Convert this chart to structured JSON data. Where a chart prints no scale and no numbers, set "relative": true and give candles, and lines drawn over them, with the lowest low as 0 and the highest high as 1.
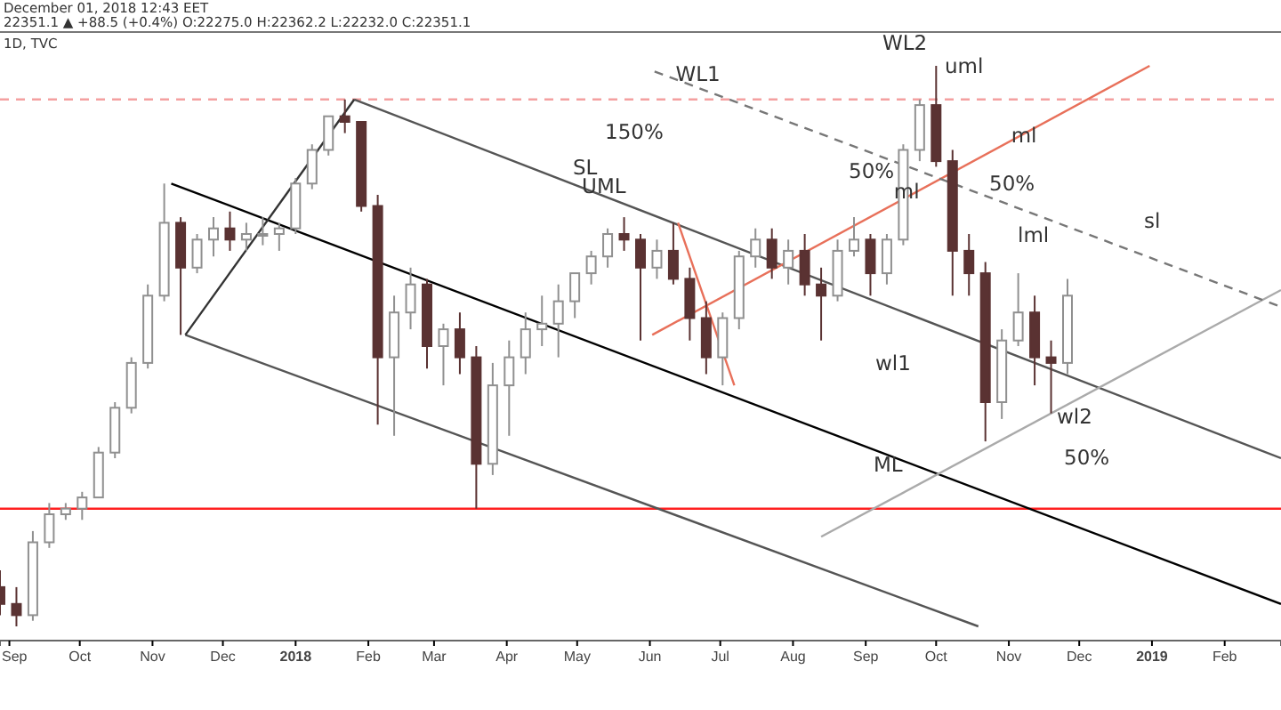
{
  "chart_data": {
    "type": "candlestick",
    "relative": true,
    "x": [
      "2017-08-28",
      "2017-09-04",
      "2017-09-11",
      "2017-09-18",
      "2017-09-25",
      "2017-10-02",
      "2017-10-09",
      "2017-10-16",
      "2017-10-23",
      "2017-10-30",
      "2017-11-06",
      "2017-11-13",
      "2017-11-20",
      "2017-11-27",
      "2017-12-04",
      "2017-12-11",
      "2017-12-18",
      "2017-12-25",
      "2018-01-01",
      "2018-01-08",
      "2018-01-15",
      "2018-01-22",
      "2018-01-29",
      "2018-02-05",
      "2018-02-12",
      "2018-02-19",
      "2018-02-26",
      "2018-03-05",
      "2018-03-12",
      "2018-03-19",
      "2018-03-26",
      "2018-04-02",
      "2018-04-09",
      "2018-04-16",
      "2018-04-23",
      "2018-04-30",
      "2018-05-07",
      "2018-05-14",
      "2018-05-21",
      "2018-05-28",
      "2018-06-04",
      "2018-06-11",
      "2018-06-18",
      "2018-06-25",
      "2018-07-02",
      "2018-07-09",
      "2018-07-16",
      "2018-07-23",
      "2018-07-30",
      "2018-08-06",
      "2018-08-13",
      "2018-08-20",
      "2018-08-27",
      "2018-09-03",
      "2018-09-10",
      "2018-09-17",
      "2018-09-24",
      "2018-10-01",
      "2018-10-08",
      "2018-10-15",
      "2018-10-22",
      "2018-10-29",
      "2018-11-05",
      "2018-11-12",
      "2018-11-19",
      "2018-11-26"
    ],
    "ohlc": [
      [
        0.07,
        0.1,
        0.02,
        0.04
      ],
      [
        0.04,
        0.07,
        0,
        0.02
      ],
      [
        0.02,
        0.17,
        0.01,
        0.15
      ],
      [
        0.15,
        0.22,
        0.14,
        0.2
      ],
      [
        0.2,
        0.22,
        0.19,
        0.21
      ],
      [
        0.21,
        0.24,
        0.19,
        0.23
      ],
      [
        0.23,
        0.32,
        0.23,
        0.31
      ],
      [
        0.31,
        0.4,
        0.3,
        0.39
      ],
      [
        0.39,
        0.48,
        0.38,
        0.47
      ],
      [
        0.47,
        0.61,
        0.46,
        0.59
      ],
      [
        0.59,
        0.79,
        0.58,
        0.72
      ],
      [
        0.72,
        0.73,
        0.52,
        0.64
      ],
      [
        0.64,
        0.7,
        0.63,
        0.69
      ],
      [
        0.69,
        0.73,
        0.66,
        0.71
      ],
      [
        0.71,
        0.74,
        0.67,
        0.69
      ],
      [
        0.69,
        0.72,
        0.67,
        0.7
      ],
      [
        0.7,
        0.73,
        0.68,
        0.7
      ],
      [
        0.7,
        0.72,
        0.67,
        0.71
      ],
      [
        0.71,
        0.8,
        0.7,
        0.79
      ],
      [
        0.79,
        0.86,
        0.78,
        0.85
      ],
      [
        0.85,
        0.91,
        0.84,
        0.91
      ],
      [
        0.91,
        0.94,
        0.88,
        0.9
      ],
      [
        0.9,
        0.9,
        0.74,
        0.75
      ],
      [
        0.75,
        0.77,
        0.36,
        0.48
      ],
      [
        0.48,
        0.59,
        0.34,
        0.56
      ],
      [
        0.56,
        0.64,
        0.53,
        0.61
      ],
      [
        0.61,
        0.62,
        0.46,
        0.5
      ],
      [
        0.5,
        0.54,
        0.43,
        0.53
      ],
      [
        0.53,
        0.56,
        0.45,
        0.48
      ],
      [
        0.48,
        0.5,
        0.21,
        0.29
      ],
      [
        0.29,
        0.47,
        0.27,
        0.43
      ],
      [
        0.43,
        0.51,
        0.34,
        0.48
      ],
      [
        0.48,
        0.56,
        0.45,
        0.53
      ],
      [
        0.53,
        0.59,
        0.5,
        0.54
      ],
      [
        0.54,
        0.61,
        0.48,
        0.58
      ],
      [
        0.58,
        0.63,
        0.55,
        0.63
      ],
      [
        0.63,
        0.67,
        0.61,
        0.66
      ],
      [
        0.66,
        0.71,
        0.64,
        0.7
      ],
      [
        0.7,
        0.73,
        0.67,
        0.69
      ],
      [
        0.69,
        0.7,
        0.51,
        0.64
      ],
      [
        0.64,
        0.69,
        0.62,
        0.67
      ],
      [
        0.67,
        0.72,
        0.61,
        0.62
      ],
      [
        0.62,
        0.64,
        0.51,
        0.55
      ],
      [
        0.55,
        0.58,
        0.45,
        0.48
      ],
      [
        0.48,
        0.56,
        0.43,
        0.55
      ],
      [
        0.55,
        0.67,
        0.53,
        0.66
      ],
      [
        0.66,
        0.71,
        0.64,
        0.69
      ],
      [
        0.69,
        0.71,
        0.62,
        0.64
      ],
      [
        0.64,
        0.69,
        0.61,
        0.67
      ],
      [
        0.67,
        0.7,
        0.59,
        0.61
      ],
      [
        0.61,
        0.64,
        0.51,
        0.59
      ],
      [
        0.59,
        0.69,
        0.58,
        0.67
      ],
      [
        0.67,
        0.73,
        0.66,
        0.69
      ],
      [
        0.69,
        0.7,
        0.59,
        0.63
      ],
      [
        0.63,
        0.7,
        0.61,
        0.69
      ],
      [
        0.69,
        0.86,
        0.68,
        0.85
      ],
      [
        0.85,
        0.94,
        0.83,
        0.93
      ],
      [
        0.93,
        1,
        0.82,
        0.83
      ],
      [
        0.83,
        0.85,
        0.59,
        0.67
      ],
      [
        0.67,
        0.7,
        0.59,
        0.63
      ],
      [
        0.63,
        0.65,
        0.33,
        0.4
      ],
      [
        0.4,
        0.53,
        0.37,
        0.51
      ],
      [
        0.51,
        0.63,
        0.5,
        0.56
      ],
      [
        0.56,
        0.59,
        0.43,
        0.48
      ],
      [
        0.48,
        0.51,
        0.38,
        0.47
      ],
      [
        0.47,
        0.62,
        0.45,
        0.59
      ]
    ],
    "series": [
      {
        "type": "line",
        "color": "#000000",
        "x": [
          "2017-11-09",
          "2019-02-25"
        ],
        "values": [
          0.79,
          0.04
        ]
      },
      {
        "type": "line",
        "color": "#555555",
        "x": [
          "2018-01-26",
          "2019-02-25"
        ],
        "values": [
          0.94,
          0.3
        ]
      },
      {
        "type": "line",
        "color": "#555555",
        "x": [
          "2017-11-15",
          "2018-10-19"
        ],
        "values": [
          0.52,
          0
        ]
      },
      {
        "type": "line",
        "color": "#333333",
        "x": [
          "2017-11-15",
          "2018-01-26"
        ],
        "values": [
          0.52,
          0.94
        ]
      },
      {
        "type": "line",
        "color": "#e8705a",
        "x": [
          "2018-06-02",
          "2018-12-31"
        ],
        "values": [
          0.52,
          1
        ]
      },
      {
        "type": "line",
        "color": "#e8705a",
        "x": [
          "2018-06-13",
          "2018-07-07"
        ],
        "values": [
          0.72,
          0.43
        ]
      },
      {
        "type": "line",
        "color": "#aaaaaa",
        "x": [
          "2018-08-13",
          "2019-02-25"
        ],
        "values": [
          0.16,
          0.6
        ]
      },
      {
        "type": "line",
        "color": "#777777",
        "line_style": "dashed",
        "x": [
          "2018-06-03",
          "2019-02-25"
        ],
        "values": [
          0.99,
          0.57
        ]
      }
    ],
    "ref_lines": [
      {
        "axis": "y",
        "value": 0.21,
        "color": "#ff2020",
        "line_style": "solid"
      },
      {
        "axis": "y",
        "value": 0.94,
        "color": "#f4a0a0",
        "line_style": "dashed"
      }
    ],
    "xlim": [
      "2017-08-28",
      "2019-02-25"
    ],
    "xticks": [
      {
        "value": "2017-09-01",
        "label": "Sep"
      },
      {
        "value": "2017-10-01",
        "label": "Oct"
      },
      {
        "value": "2017-11-01",
        "label": "Nov"
      },
      {
        "value": "2017-12-01",
        "label": "Dec"
      },
      {
        "value": "2018-01-01",
        "label": "2018"
      },
      {
        "value": "2018-02-01",
        "label": "Feb"
      },
      {
        "value": "2018-03-01",
        "label": "Mar"
      },
      {
        "value": "2018-04-01",
        "label": "Apr"
      },
      {
        "value": "2018-05-01",
        "label": "May"
      },
      {
        "value": "2018-06-01",
        "label": "Jun"
      },
      {
        "value": "2018-07-01",
        "label": "Jul"
      },
      {
        "value": "2018-08-01",
        "label": "Aug"
      },
      {
        "value": "2018-09-01",
        "label": "Sep"
      },
      {
        "value": "2018-10-01",
        "label": "Oct"
      },
      {
        "value": "2018-11-01",
        "label": "Nov"
      },
      {
        "value": "2018-12-01",
        "label": "Dec"
      },
      {
        "value": "2019-01-01",
        "label": "2019"
      },
      {
        "value": "2019-02-01",
        "label": "Feb"
      }
    ],
    "annotations": [
      "December 01, 2018 12:43 EET",
      "22351.1 ▲ +88.5 (+0.4%) O:22275.0 H:22362.2 L:22232.0 C:22351.1",
      "1D, TVC",
      {
        "text": "WL1",
        "x": "2018-06-12",
        "y": 0.97
      },
      "150%",
      "SL",
      {
        "text": "UML",
        "x": "2018-05-03",
        "y": 0.77
      },
      "50%",
      {
        "text": "ml",
        "x": "2018-09-13",
        "y": 0.76
      },
      "WL2",
      "uml",
      {
        "text": "ml",
        "x": "2018-11-02",
        "y": 0.86
      },
      "50%",
      "lml",
      "sl",
      "wl1",
      "wl2",
      "50%",
      "ML"
    ]
  }
}
